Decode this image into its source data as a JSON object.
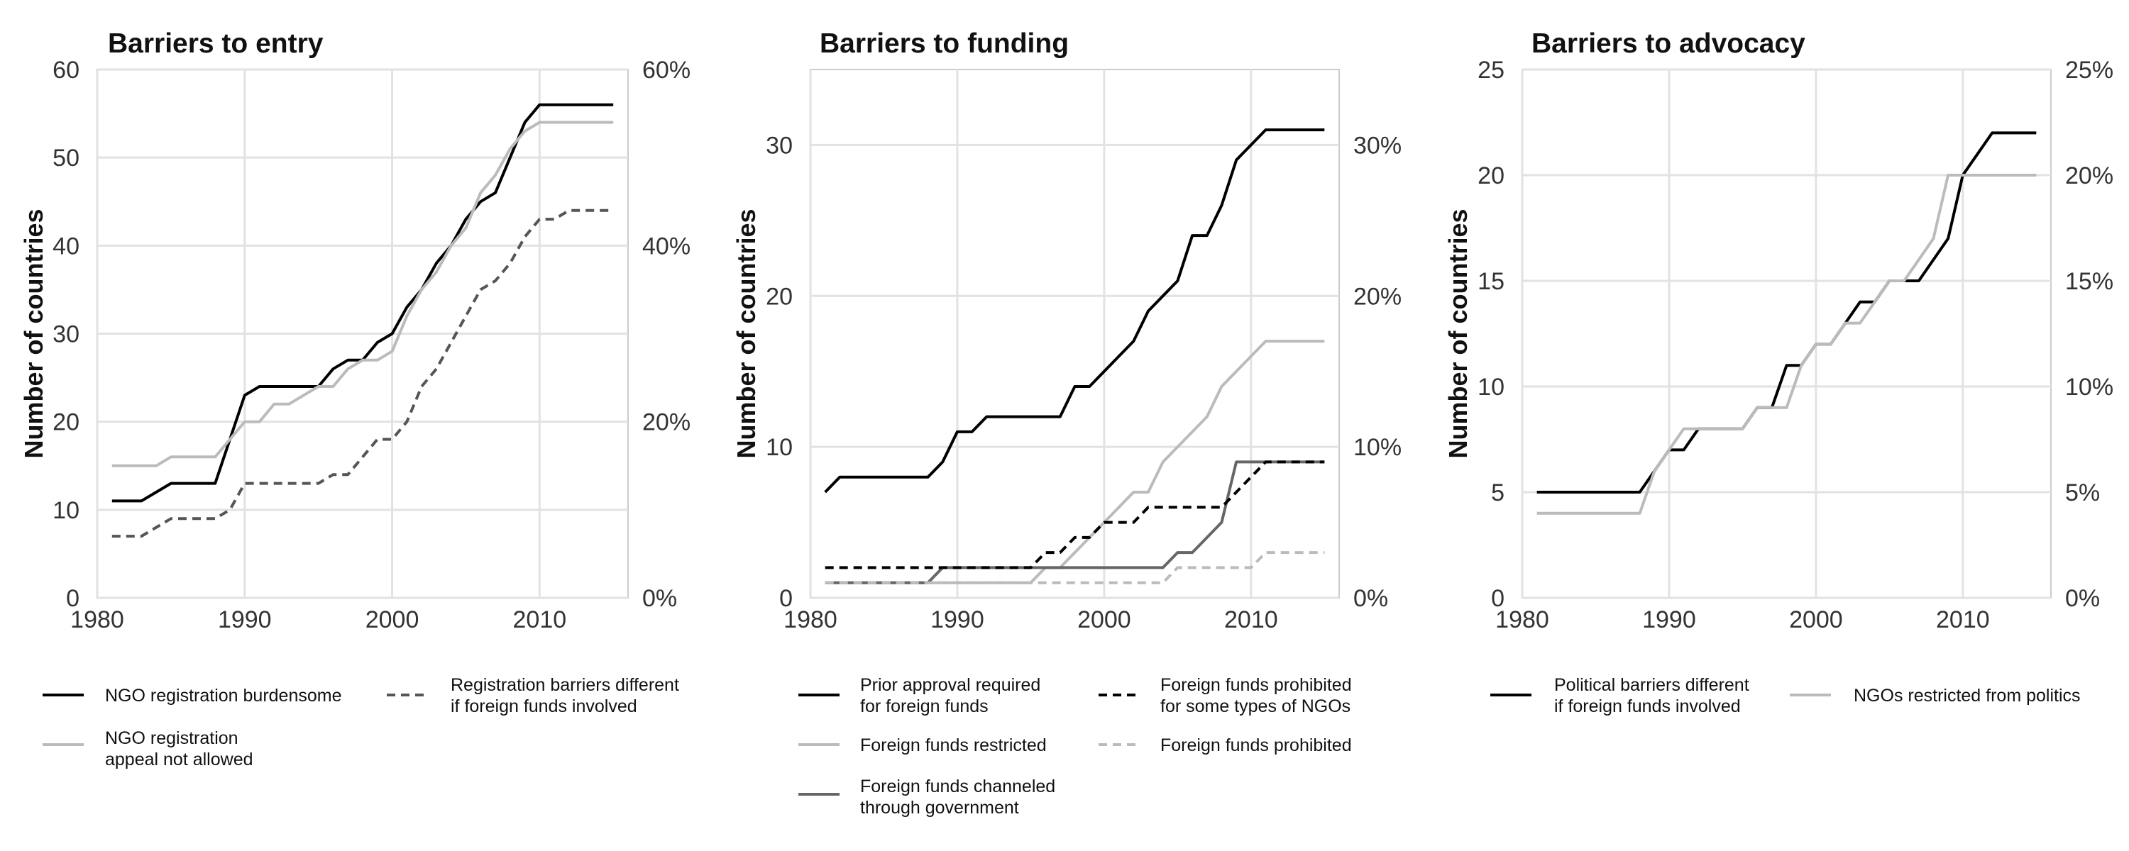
{
  "chart_data": [
    {
      "type": "line",
      "title": "Barriers to entry",
      "ylabel": "Number of countries",
      "xlim": [
        1980,
        2016
      ],
      "ylim": [
        0,
        60
      ],
      "xticks": [
        "1980",
        "1990",
        "2000",
        "2010"
      ],
      "yticks": [
        "0",
        "10",
        "20",
        "30",
        "40",
        "50",
        "60"
      ],
      "y2ticks": [
        "0%",
        "20%",
        "40%",
        "60%"
      ],
      "grid": true,
      "legend_position": "bottom",
      "series": [
        {
          "name": "NGO registration burdensome",
          "color": "#000000",
          "dash": "solid",
          "points": [
            [
              1981,
              11
            ],
            [
              1983,
              11
            ],
            [
              1985,
              13
            ],
            [
              1988,
              13
            ],
            [
              1989,
              18
            ],
            [
              1990,
              23
            ],
            [
              1991,
              24
            ],
            [
              1995,
              24
            ],
            [
              1996,
              26
            ],
            [
              1997,
              27
            ],
            [
              1998,
              27
            ],
            [
              1999,
              29
            ],
            [
              2000,
              30
            ],
            [
              2001,
              33
            ],
            [
              2002,
              35
            ],
            [
              2003,
              38
            ],
            [
              2004,
              40
            ],
            [
              2005,
              43
            ],
            [
              2006,
              45
            ],
            [
              2007,
              46
            ],
            [
              2008,
              50
            ],
            [
              2009,
              54
            ],
            [
              2010,
              56
            ],
            [
              2015,
              56
            ]
          ]
        },
        {
          "name": "NGO registration\nappeal not allowed",
          "color": "#bbbbbb",
          "dash": "solid",
          "points": [
            [
              1981,
              15
            ],
            [
              1984,
              15
            ],
            [
              1985,
              16
            ],
            [
              1988,
              16
            ],
            [
              1990,
              20
            ],
            [
              1991,
              20
            ],
            [
              1992,
              22
            ],
            [
              1993,
              22
            ],
            [
              1995,
              24
            ],
            [
              1996,
              24
            ],
            [
              1997,
              26
            ],
            [
              1998,
              27
            ],
            [
              1999,
              27
            ],
            [
              2000,
              28
            ],
            [
              2001,
              32
            ],
            [
              2002,
              35
            ],
            [
              2003,
              37
            ],
            [
              2004,
              40
            ],
            [
              2005,
              42
            ],
            [
              2006,
              46
            ],
            [
              2007,
              48
            ],
            [
              2008,
              51
            ],
            [
              2009,
              53
            ],
            [
              2010,
              54
            ],
            [
              2015,
              54
            ]
          ]
        },
        {
          "name": "Registration barriers different\nif foreign funds involved",
          "color": "#555555",
          "dash": "dash",
          "points": [
            [
              1981,
              7
            ],
            [
              1983,
              7
            ],
            [
              1985,
              9
            ],
            [
              1988,
              9
            ],
            [
              1989,
              10
            ],
            [
              1990,
              13
            ],
            [
              1995,
              13
            ],
            [
              1996,
              14
            ],
            [
              1997,
              14
            ],
            [
              1998,
              16
            ],
            [
              1999,
              18
            ],
            [
              2000,
              18
            ],
            [
              2001,
              20
            ],
            [
              2002,
              24
            ],
            [
              2003,
              26
            ],
            [
              2004,
              29
            ],
            [
              2005,
              32
            ],
            [
              2006,
              35
            ],
            [
              2007,
              36
            ],
            [
              2008,
              38
            ],
            [
              2009,
              41
            ],
            [
              2010,
              43
            ],
            [
              2011,
              43
            ],
            [
              2012,
              44
            ],
            [
              2015,
              44
            ]
          ]
        }
      ]
    },
    {
      "type": "line",
      "title": "Barriers to funding",
      "ylabel": "Number of countries",
      "xlim": [
        1980,
        2016
      ],
      "ylim": [
        0,
        35
      ],
      "xticks": [
        "1980",
        "1990",
        "2000",
        "2010"
      ],
      "yticks": [
        "0",
        "10",
        "20",
        "30"
      ],
      "y2ticks": [
        "0%",
        "10%",
        "20%",
        "30%"
      ],
      "grid": true,
      "legend_position": "bottom",
      "series": [
        {
          "name": "Prior approval required\nfor foreign funds",
          "color": "#000000",
          "dash": "solid",
          "points": [
            [
              1981,
              7
            ],
            [
              1982,
              8
            ],
            [
              1988,
              8
            ],
            [
              1989,
              9
            ],
            [
              1990,
              11
            ],
            [
              1991,
              11
            ],
            [
              1992,
              12
            ],
            [
              1997,
              12
            ],
            [
              1998,
              14
            ],
            [
              1999,
              14
            ],
            [
              2000,
              15
            ],
            [
              2001,
              16
            ],
            [
              2002,
              17
            ],
            [
              2003,
              19
            ],
            [
              2004,
              20
            ],
            [
              2005,
              21
            ],
            [
              2006,
              24
            ],
            [
              2007,
              24
            ],
            [
              2008,
              26
            ],
            [
              2009,
              29
            ],
            [
              2010,
              30
            ],
            [
              2011,
              31
            ],
            [
              2015,
              31
            ]
          ]
        },
        {
          "name": "Foreign funds restricted",
          "color": "#bbbbbb",
          "dash": "solid",
          "points": [
            [
              1981,
              1
            ],
            [
              1995,
              1
            ],
            [
              1996,
              2
            ],
            [
              1997,
              2
            ],
            [
              1999,
              4
            ],
            [
              2000,
              5
            ],
            [
              2001,
              6
            ],
            [
              2002,
              7
            ],
            [
              2003,
              7
            ],
            [
              2004,
              9
            ],
            [
              2005,
              10
            ],
            [
              2006,
              11
            ],
            [
              2007,
              12
            ],
            [
              2008,
              14
            ],
            [
              2009,
              15
            ],
            [
              2010,
              16
            ],
            [
              2011,
              17
            ],
            [
              2015,
              17
            ]
          ]
        },
        {
          "name": "Foreign funds channeled\nthrough government",
          "color": "#666666",
          "dash": "solid",
          "points": [
            [
              1981,
              1
            ],
            [
              1988,
              1
            ],
            [
              1989,
              2
            ],
            [
              2004,
              2
            ],
            [
              2005,
              3
            ],
            [
              2006,
              3
            ],
            [
              2007,
              4
            ],
            [
              2008,
              5
            ],
            [
              2009,
              9
            ],
            [
              2015,
              9
            ]
          ]
        },
        {
          "name": "Foreign funds prohibited\nfor some types of NGOs",
          "color": "#000000",
          "dash": "dash",
          "points": [
            [
              1981,
              2
            ],
            [
              1995,
              2
            ],
            [
              1996,
              3
            ],
            [
              1997,
              3
            ],
            [
              1998,
              4
            ],
            [
              1999,
              4
            ],
            [
              2000,
              5
            ],
            [
              2002,
              5
            ],
            [
              2003,
              6
            ],
            [
              2008,
              6
            ],
            [
              2009,
              7
            ],
            [
              2010,
              8
            ],
            [
              2011,
              9
            ],
            [
              2015,
              9
            ]
          ]
        },
        {
          "name": "Foreign funds prohibited",
          "color": "#bbbbbb",
          "dash": "dash",
          "points": [
            [
              1981,
              1
            ],
            [
              2004,
              1
            ],
            [
              2005,
              2
            ],
            [
              2010,
              2
            ],
            [
              2011,
              3
            ],
            [
              2015,
              3
            ]
          ]
        }
      ]
    },
    {
      "type": "line",
      "title": "Barriers to advocacy",
      "ylabel": "Number of countries",
      "xlim": [
        1980,
        2016
      ],
      "ylim": [
        0,
        25
      ],
      "xticks": [
        "1980",
        "1990",
        "2000",
        "2010"
      ],
      "yticks": [
        "0",
        "5",
        "10",
        "15",
        "20",
        "25"
      ],
      "y2ticks": [
        "0%",
        "5%",
        "10%",
        "15%",
        "20%",
        "25%"
      ],
      "grid": true,
      "legend_position": "bottom",
      "series": [
        {
          "name": "Political barriers different\nif foreign funds involved",
          "color": "#000000",
          "dash": "solid",
          "points": [
            [
              1981,
              5
            ],
            [
              1988,
              5
            ],
            [
              1989,
              6
            ],
            [
              1990,
              7
            ],
            [
              1991,
              7
            ],
            [
              1992,
              8
            ],
            [
              1995,
              8
            ],
            [
              1996,
              9
            ],
            [
              1997,
              9
            ],
            [
              1998,
              11
            ],
            [
              1999,
              11
            ],
            [
              2000,
              12
            ],
            [
              2001,
              12
            ],
            [
              2002,
              13
            ],
            [
              2003,
              14
            ],
            [
              2004,
              14
            ],
            [
              2005,
              15
            ],
            [
              2007,
              15
            ],
            [
              2008,
              16
            ],
            [
              2009,
              17
            ],
            [
              2010,
              20
            ],
            [
              2011,
              21
            ],
            [
              2012,
              22
            ],
            [
              2015,
              22
            ]
          ]
        },
        {
          "name": "NGOs restricted from politics",
          "color": "#bbbbbb",
          "dash": "solid",
          "points": [
            [
              1981,
              4
            ],
            [
              1988,
              4
            ],
            [
              1989,
              6
            ],
            [
              1990,
              7
            ],
            [
              1991,
              8
            ],
            [
              1995,
              8
            ],
            [
              1996,
              9
            ],
            [
              1998,
              9
            ],
            [
              1999,
              11
            ],
            [
              2000,
              12
            ],
            [
              2001,
              12
            ],
            [
              2002,
              13
            ],
            [
              2003,
              13
            ],
            [
              2004,
              14
            ],
            [
              2005,
              15
            ],
            [
              2006,
              15
            ],
            [
              2007,
              16
            ],
            [
              2008,
              17
            ],
            [
              2009,
              20
            ],
            [
              2015,
              20
            ]
          ]
        }
      ]
    }
  ]
}
